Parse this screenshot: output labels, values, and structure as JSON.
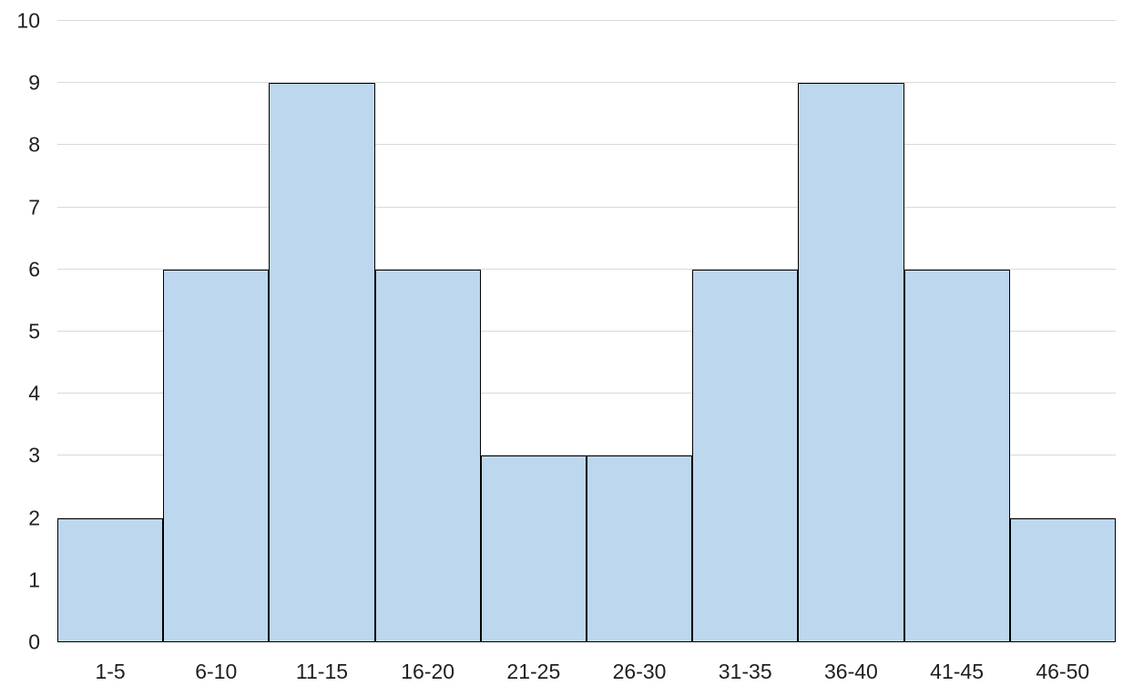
{
  "chart_data": {
    "type": "bar",
    "chart_kind": "histogram",
    "title": "",
    "xlabel": "",
    "ylabel": "",
    "categories": [
      "1-5",
      "6-10",
      "11-15",
      "16-20",
      "21-25",
      "26-30",
      "31-35",
      "36-40",
      "41-45",
      "46-50"
    ],
    "values": [
      2,
      6,
      9,
      6,
      3,
      3,
      6,
      9,
      6,
      2
    ],
    "ylim": [
      0,
      10
    ],
    "y_ticks": [
      0,
      1,
      2,
      3,
      4,
      5,
      6,
      7,
      8,
      9,
      10
    ],
    "grid": true,
    "legend": false,
    "gap_between_bars": false
  },
  "styles": {
    "bar_fill": "#BDD7EE",
    "bar_border": "#000000",
    "gridline_color": "#D9D9D9",
    "axis_text_color": "#1F1F1F",
    "background": "#FFFFFF"
  }
}
